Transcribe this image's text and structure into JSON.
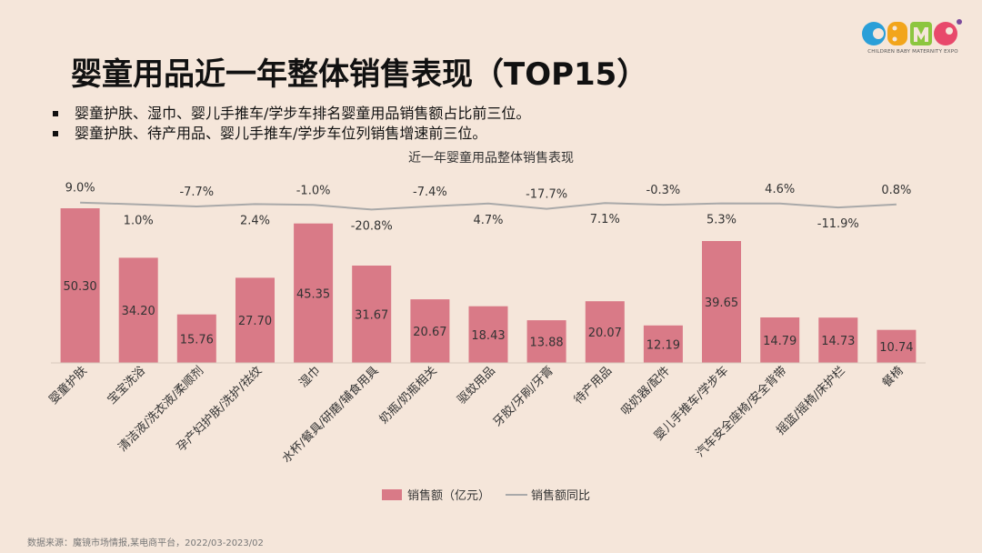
{
  "header": {
    "title": "婴童用品近一年整体销售表现（TOP15）",
    "bullets": [
      "婴童护肤、湿巾、婴儿手推车/学步车排名婴童用品销售额占比前三位。",
      "婴童护肤、待产用品、婴儿手推车/学步车位列销售增速前三位。"
    ]
  },
  "logo": {
    "text": "CBME",
    "caption": "CHILDREN BABY MATERNITY EXPO",
    "colors": [
      "#2a9fd8",
      "#f2a51b",
      "#8cc63f",
      "#e8496b",
      "#7b4a9c"
    ]
  },
  "footer": {
    "source": "数据来源：魔镜市场情报,某电商平台，2022/03-2023/02"
  },
  "colors": {
    "bar": "#d97a87",
    "line": "#a9a9a9",
    "background": "#f5e6da"
  },
  "chart_data": {
    "type": "bar",
    "title": "近一年婴童用品整体销售表现",
    "categories": [
      "婴童护肤",
      "宝宝洗浴",
      "清洁液/洗衣液/柔顺剂",
      "孕产妇护肤/洗护/祛纹",
      "湿巾",
      "水杯/餐具/研磨/辅食用具",
      "奶瓶/奶瓶相关",
      "驱蚊用品",
      "牙胶/牙刷/牙膏",
      "待产用品",
      "吸奶器/配件",
      "婴儿手推车/学步车",
      "汽车安全座椅/安全背带",
      "摇篮/摇椅/床护栏",
      "餐椅"
    ],
    "series": [
      {
        "name": "销售额（亿元）",
        "type": "bar",
        "values": [
          50.3,
          34.2,
          15.76,
          27.7,
          45.35,
          31.67,
          20.67,
          18.43,
          13.88,
          20.07,
          12.19,
          39.65,
          14.79,
          14.73,
          10.74
        ],
        "labels": [
          "50.30",
          "34.20",
          "15.76",
          "27.70",
          "45.35",
          "31.67",
          "20.67",
          "18.43",
          "13.88",
          "20.07",
          "12.19",
          "39.65",
          "14.79",
          "14.73",
          "10.74"
        ]
      },
      {
        "name": "销售额同比",
        "type": "line",
        "values": [
          9.0,
          1.0,
          -7.7,
          2.4,
          -1.0,
          -20.8,
          -7.4,
          4.7,
          -17.7,
          7.1,
          -0.3,
          5.3,
          4.6,
          -11.9,
          0.8
        ],
        "labels": [
          "9.0%",
          "1.0%",
          "-7.7%",
          "2.4%",
          "-1.0%",
          "-20.8%",
          "-7.4%",
          "4.7%",
          "-17.7%",
          "7.1%",
          "-0.3%",
          "5.3%",
          "4.6%",
          "-11.9%",
          "0.8%"
        ]
      }
    ],
    "legend_position": "bottom",
    "grid": false
  }
}
